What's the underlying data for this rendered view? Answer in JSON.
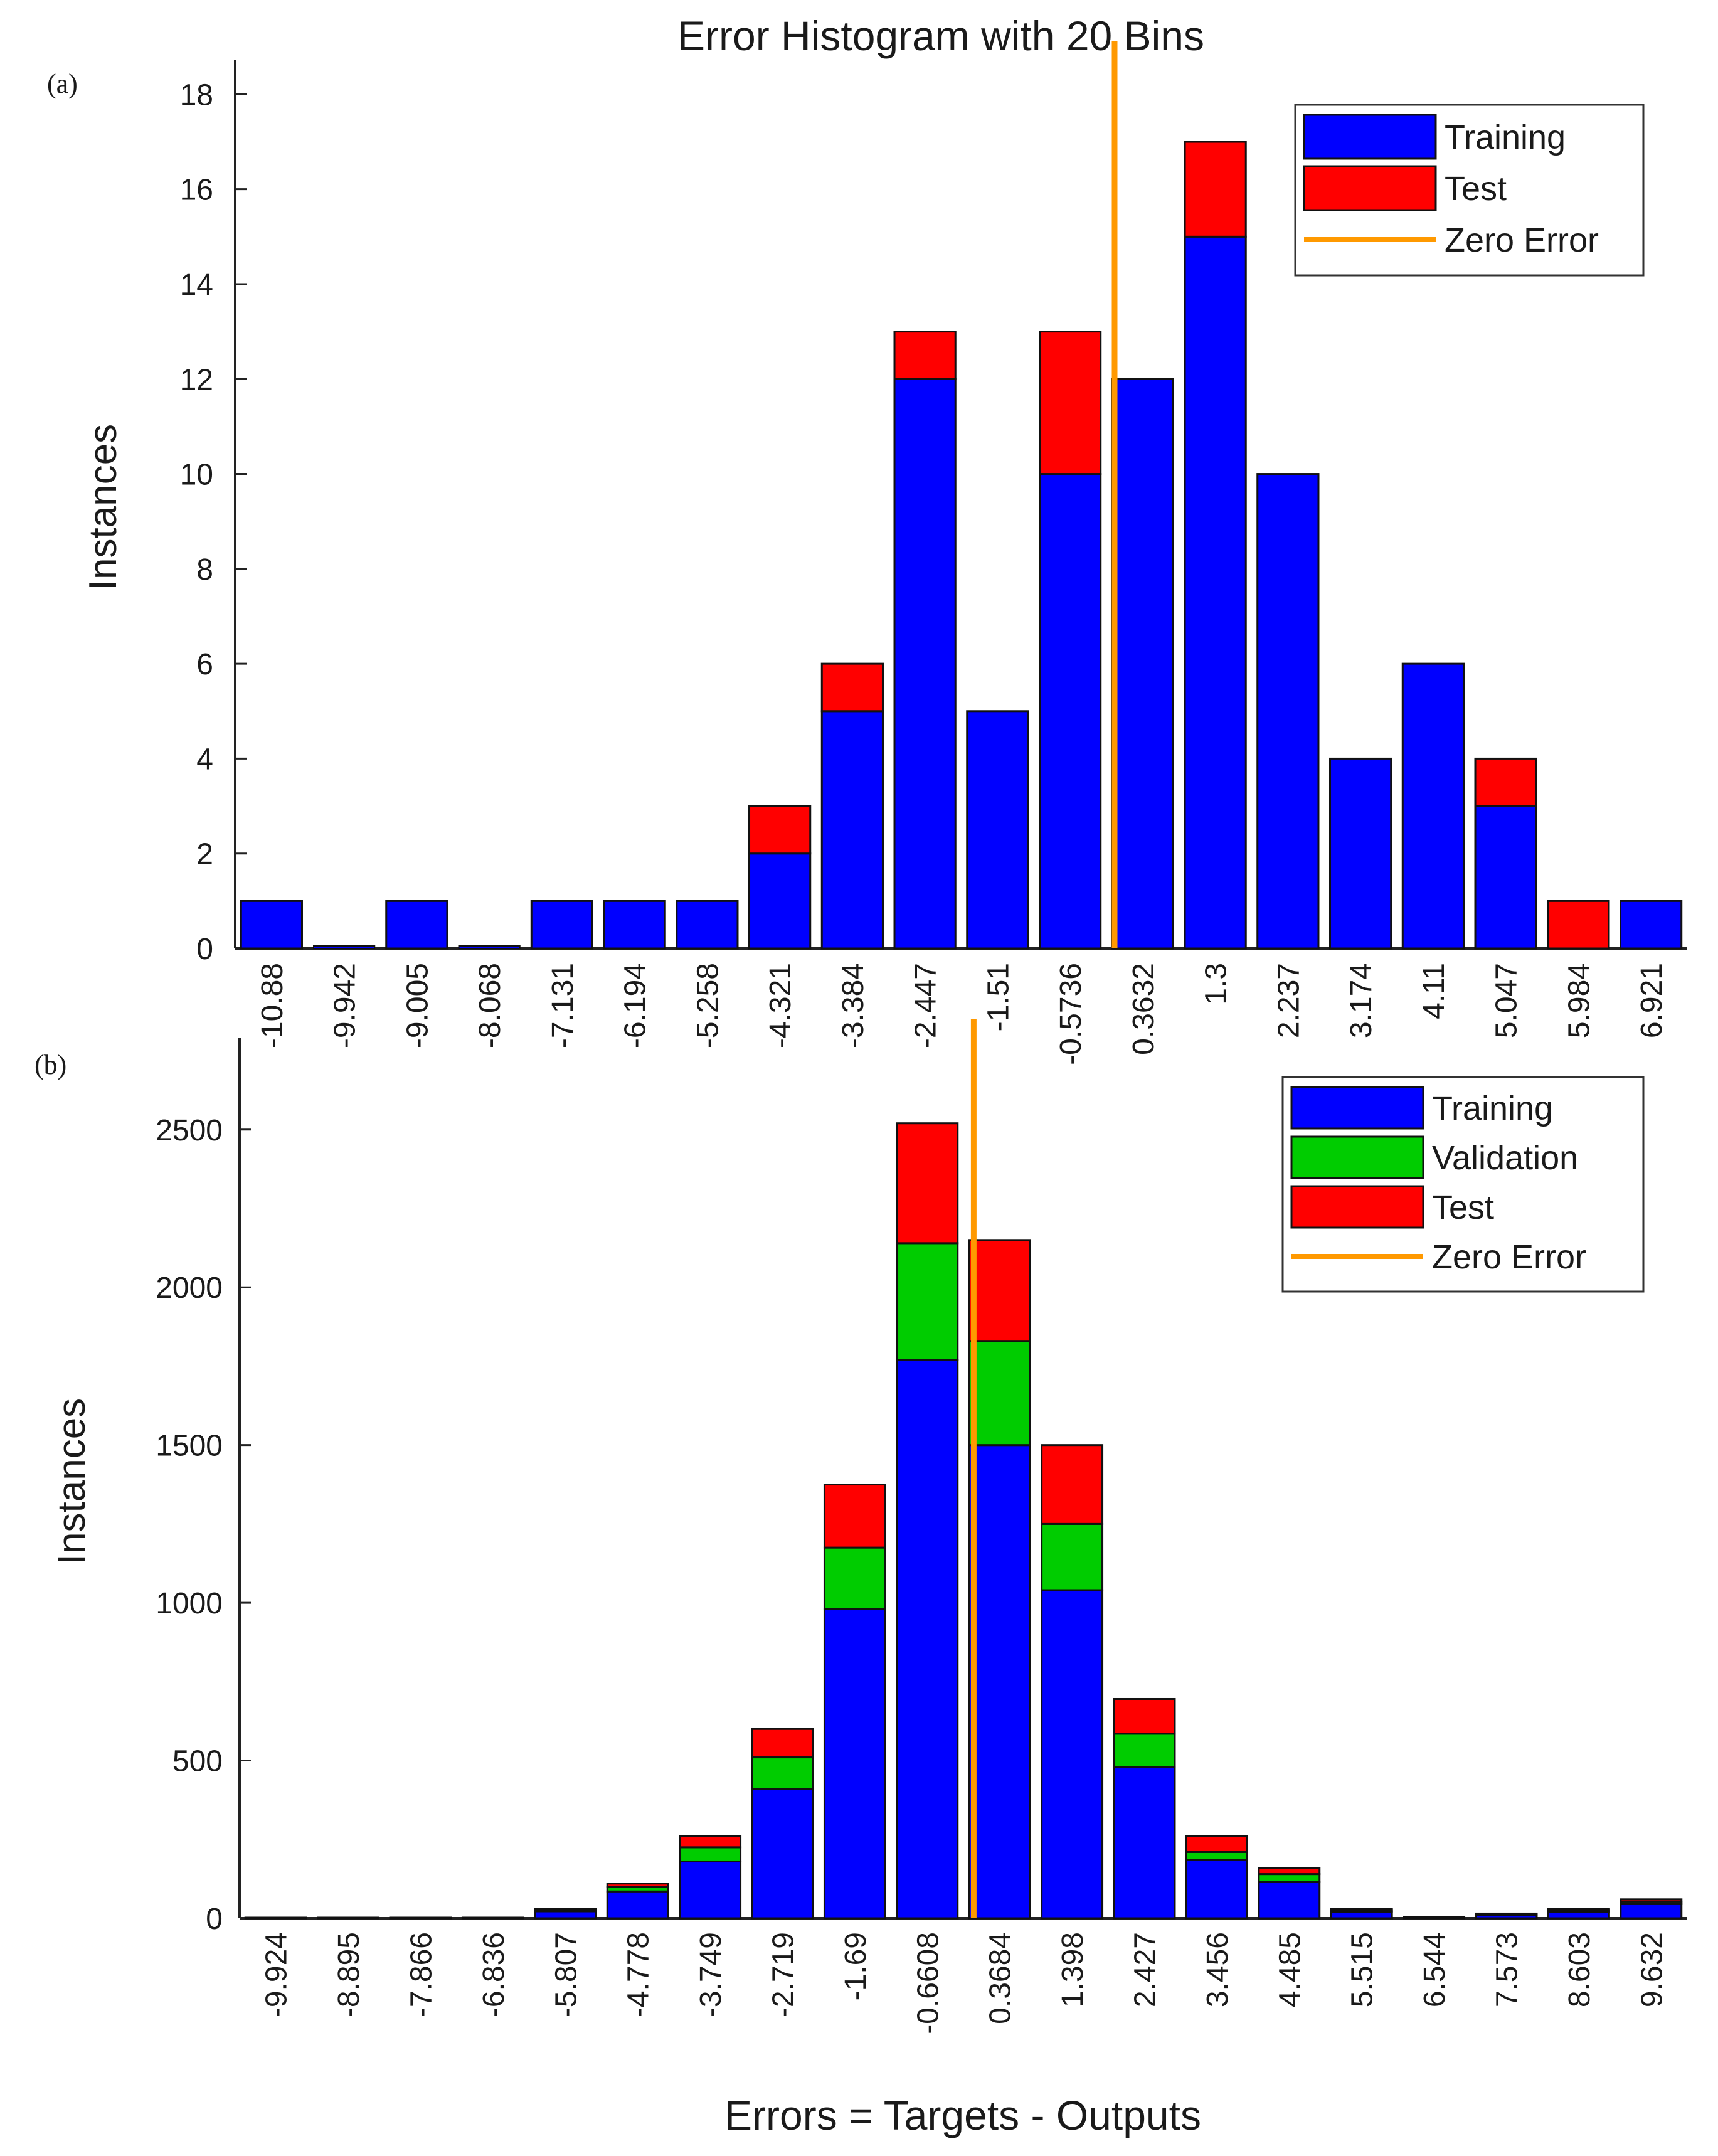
{
  "chart_data": [
    {
      "panel_label": "(a)",
      "type": "bar",
      "stacked": true,
      "title": "Error Histogram with 20 Bins",
      "xlabel": "",
      "ylabel": "Instances",
      "ylim": [
        0,
        18.6
      ],
      "yticks": [
        0,
        2,
        4,
        6,
        8,
        10,
        12,
        14,
        16,
        18
      ],
      "categories": [
        "-10.88",
        "-9.942",
        "-9.005",
        "-8.068",
        "-7.131",
        "-6.194",
        "-5.258",
        "-4.321",
        "-3.384",
        "-2.447",
        "-1.51",
        "-0.5736",
        "0.3632",
        "1.3",
        "2.237",
        "3.174",
        "4.11",
        "5.047",
        "5.984",
        "6.921"
      ],
      "series": [
        {
          "name": "Training",
          "color": "#0000ff",
          "values": [
            1,
            0,
            1,
            0,
            1,
            1,
            1,
            2,
            5,
            12,
            5,
            10,
            12,
            15,
            10,
            4,
            6,
            3,
            0,
            1
          ]
        },
        {
          "name": "Test",
          "color": "#ff0000",
          "values": [
            0,
            0,
            0,
            0,
            0,
            0,
            0,
            1,
            1,
            1,
            0,
            3,
            0,
            2,
            0,
            0,
            0,
            1,
            1,
            0
          ]
        }
      ],
      "zero_error": {
        "name": "Zero Error",
        "color": "#ff9900",
        "x": 0
      },
      "legend": {
        "position": "top-right",
        "items": [
          "Training",
          "Test",
          "Zero Error"
        ]
      }
    },
    {
      "panel_label": "(b)",
      "type": "bar",
      "stacked": true,
      "title": "",
      "xlabel": "Errors = Targets - Outputs",
      "ylabel": "Instances",
      "ylim": [
        0,
        2770
      ],
      "yticks": [
        0,
        500,
        1000,
        1500,
        2000,
        2500
      ],
      "categories": [
        "-9.924",
        "-8.895",
        "-7.866",
        "-6.836",
        "-5.807",
        "-4.778",
        "-3.749",
        "-2.719",
        "-1.69",
        "-0.6608",
        "0.3684",
        "1.398",
        "2.427",
        "3.456",
        "4.485",
        "5.515",
        "6.544",
        "7.573",
        "8.603",
        "9.632"
      ],
      "series": [
        {
          "name": "Training",
          "color": "#0000ff",
          "values": [
            2,
            2,
            2,
            2,
            22,
            85,
            180,
            410,
            980,
            1770,
            1500,
            1040,
            480,
            185,
            115,
            20,
            4,
            10,
            20,
            45
          ]
        },
        {
          "name": "Validation",
          "color": "#00cc00",
          "values": [
            0,
            0,
            0,
            0,
            4,
            15,
            45,
            100,
            195,
            370,
            330,
            210,
            105,
            25,
            25,
            4,
            0,
            2,
            4,
            8
          ]
        },
        {
          "name": "Test",
          "color": "#ff0000",
          "values": [
            0,
            0,
            0,
            0,
            4,
            10,
            35,
            90,
            200,
            380,
            320,
            250,
            110,
            50,
            20,
            6,
            0,
            3,
            6,
            7
          ]
        }
      ],
      "zero_error": {
        "name": "Zero Error",
        "color": "#ff9900",
        "x": 0
      },
      "legend": {
        "position": "top-right",
        "items": [
          "Training",
          "Validation",
          "Test",
          "Zero Error"
        ]
      }
    }
  ]
}
